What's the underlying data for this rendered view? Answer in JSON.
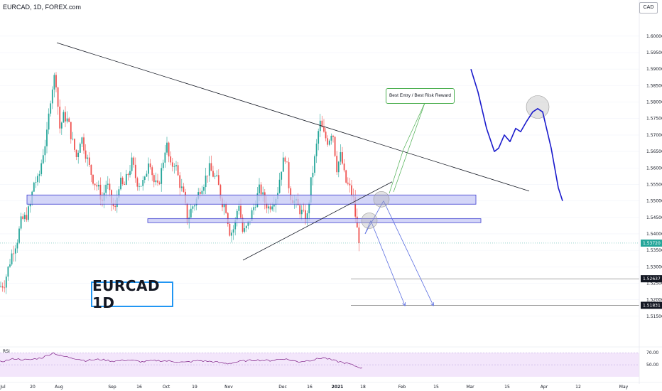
{
  "header": {
    "symbol_line": "EURCAD, 1D, FOREX.com",
    "currency_badge": "CAD"
  },
  "annotations": {
    "chart_title": "EURCAD 1D",
    "callout": "Best Entry / Best Risk Reward"
  },
  "indicator": {
    "label": "RSI",
    "levels": [
      "70.00",
      "50.00"
    ]
  },
  "price_tags": {
    "current": "1.53720",
    "target1": "1.52637",
    "target2": "1.51831"
  },
  "colors": {
    "up": "#26a69a",
    "down": "#ef5350",
    "zone_fill": "#c5c8f5",
    "zone_stroke": "#3f3fd0",
    "projection": "#1a1acc",
    "arrow": "#5b6ee1",
    "rsi_line": "#7e1f86",
    "rsi_band": "#f3e6fb"
  },
  "chart_data": {
    "type": "candlestick",
    "title": "EURCAD, 1D, FOREX.com",
    "ylim": [
      1.51,
      1.6045
    ],
    "y_ticks": [
      "1.60000",
      "1.59500",
      "1.59000",
      "1.58500",
      "1.58000",
      "1.57500",
      "1.57000",
      "1.56500",
      "1.56000",
      "1.55500",
      "1.55000",
      "1.54500",
      "1.54000",
      "1.53500",
      "1.53000",
      "1.52500",
      "1.52000",
      "1.51500"
    ],
    "x_ticks": [
      "Jul",
      "20",
      "Aug",
      "Sep",
      "16",
      "Oct",
      "19",
      "Nov",
      "Dec",
      "16",
      "2021",
      "18",
      "Feb",
      "15",
      "Mar",
      "15",
      "Apr",
      "12",
      "May"
    ],
    "close_path": [
      [
        0,
        1.524
      ],
      [
        6,
        1.525
      ],
      [
        12,
        1.53
      ],
      [
        18,
        1.535
      ],
      [
        24,
        1.538
      ],
      [
        30,
        1.544
      ],
      [
        36,
        1.545
      ],
      [
        42,
        1.548
      ],
      [
        48,
        1.556
      ],
      [
        54,
        1.556
      ],
      [
        60,
        1.564
      ],
      [
        66,
        1.57
      ],
      [
        72,
        1.583
      ],
      [
        78,
        1.589
      ],
      [
        84,
        1.572
      ],
      [
        90,
        1.576
      ],
      [
        96,
        1.574
      ],
      [
        102,
        1.568
      ],
      [
        108,
        1.563
      ],
      [
        114,
        1.57
      ],
      [
        120,
        1.565
      ],
      [
        126,
        1.56
      ],
      [
        132,
        1.556
      ],
      [
        138,
        1.554
      ],
      [
        144,
        1.55
      ],
      [
        150,
        1.556
      ],
      [
        156,
        1.55
      ],
      [
        162,
        1.547
      ],
      [
        168,
        1.556
      ],
      [
        174,
        1.554
      ],
      [
        180,
        1.558
      ],
      [
        186,
        1.562
      ],
      [
        192,
        1.556
      ],
      [
        198,
        1.555
      ],
      [
        204,
        1.556
      ],
      [
        210,
        1.564
      ],
      [
        216,
        1.556
      ],
      [
        222,
        1.554
      ],
      [
        228,
        1.56
      ],
      [
        234,
        1.568
      ],
      [
        240,
        1.56
      ],
      [
        246,
        1.562
      ],
      [
        252,
        1.556
      ],
      [
        258,
        1.552
      ],
      [
        264,
        1.544
      ],
      [
        270,
        1.548
      ],
      [
        276,
        1.55
      ],
      [
        282,
        1.554
      ],
      [
        288,
        1.556
      ],
      [
        294,
        1.56
      ],
      [
        300,
        1.558
      ],
      [
        306,
        1.556
      ],
      [
        312,
        1.55
      ],
      [
        318,
        1.548
      ],
      [
        324,
        1.54
      ],
      [
        330,
        1.542
      ],
      [
        336,
        1.55
      ],
      [
        342,
        1.54
      ],
      [
        348,
        1.542
      ],
      [
        354,
        1.546
      ],
      [
        360,
        1.55
      ],
      [
        366,
        1.554
      ],
      [
        372,
        1.55
      ],
      [
        378,
        1.548
      ],
      [
        384,
        1.55
      ],
      [
        390,
        1.552
      ],
      [
        396,
        1.56
      ],
      [
        402,
        1.564
      ],
      [
        408,
        1.552
      ],
      [
        414,
        1.55
      ],
      [
        420,
        1.548
      ],
      [
        426,
        1.546
      ],
      [
        432,
        1.544
      ],
      [
        438,
        1.556
      ],
      [
        444,
        1.564
      ],
      [
        450,
        1.574
      ],
      [
        456,
        1.57
      ],
      [
        462,
        1.568
      ],
      [
        468,
        1.572
      ],
      [
        474,
        1.56
      ],
      [
        480,
        1.564
      ],
      [
        486,
        1.556
      ],
      [
        492,
        1.554
      ],
      [
        498,
        1.55
      ],
      [
        502,
        1.542
      ],
      [
        506,
        1.538
      ]
    ],
    "resistance_zone": [
      1.5518,
      1.549
    ],
    "support_zone": [
      1.5446,
      1.5434
    ],
    "trendline_desc": [
      [
        80,
        1.598
      ],
      [
        745,
        1.553
      ]
    ],
    "trendline_asc": [
      [
        342,
        1.532
      ],
      [
        552,
        1.5558
      ]
    ],
    "projection_path": [
      [
        663,
        1.59
      ],
      [
        673,
        1.583
      ],
      [
        685,
        1.572
      ],
      [
        696,
        1.565
      ],
      [
        702,
        1.566
      ],
      [
        710,
        1.57
      ],
      [
        718,
        1.568
      ],
      [
        726,
        1.572
      ],
      [
        733,
        1.571
      ],
      [
        741,
        1.574
      ],
      [
        750,
        1.577
      ],
      [
        757,
        1.578
      ],
      [
        764,
        1.577
      ],
      [
        776,
        1.566
      ],
      [
        786,
        1.554
      ],
      [
        792,
        1.55
      ]
    ],
    "arrows": [
      [
        [
          514,
          1.54
        ],
        [
          540,
          1.55
        ]
      ],
      [
        [
          540,
          1.55
        ],
        [
          610,
          1.5183
        ]
      ],
      [
        [
          514,
          1.54
        ],
        [
          522,
          1.544
        ]
      ],
      [
        [
          522,
          1.544
        ],
        [
          570,
          1.5183
        ]
      ]
    ],
    "circles": [
      [
        537,
        1.5505
      ],
      [
        520,
        1.544
      ],
      [
        757,
        1.5785
      ]
    ],
    "target_levels": [
      1.52637,
      1.51831
    ],
    "current_price": 1.5372,
    "rsi": {
      "ylim": [
        30,
        75
      ],
      "levels": [
        70,
        50
      ],
      "values": [
        [
          0,
          55
        ],
        [
          20,
          60
        ],
        [
          40,
          58
        ],
        [
          60,
          62
        ],
        [
          75,
          70
        ],
        [
          85,
          65
        ],
        [
          100,
          62
        ],
        [
          120,
          57
        ],
        [
          140,
          59
        ],
        [
          160,
          56
        ],
        [
          180,
          58
        ],
        [
          200,
          55
        ],
        [
          220,
          57
        ],
        [
          240,
          56
        ],
        [
          260,
          54
        ],
        [
          280,
          57
        ],
        [
          300,
          55
        ],
        [
          320,
          52
        ],
        [
          340,
          56
        ],
        [
          360,
          58
        ],
        [
          380,
          57
        ],
        [
          400,
          60
        ],
        [
          420,
          55
        ],
        [
          440,
          58
        ],
        [
          455,
          62
        ],
        [
          470,
          57
        ],
        [
          490,
          52
        ],
        [
          505,
          46
        ],
        [
          510,
          45
        ]
      ]
    }
  }
}
